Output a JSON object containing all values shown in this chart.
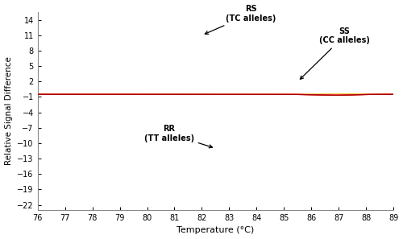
{
  "xlabel": "Temperature (°C)",
  "ylabel": "Relative Signal Difference",
  "xlim": [
    76,
    89
  ],
  "ylim": [
    -23,
    15.5
  ],
  "yticks": [
    14,
    11,
    8,
    5,
    2,
    -1,
    -4,
    -7,
    -10,
    -13,
    -16,
    -19,
    -22
  ],
  "xticks": [
    76,
    77,
    78,
    79,
    80,
    81,
    82,
    83,
    84,
    85,
    86,
    87,
    88,
    89
  ],
  "rs_label": "RS\n(TC alleles)",
  "ss_label": "SS\n(CC alleles)",
  "rr_label": "RR\n(TT alleles)",
  "baseline": -0.5,
  "ss_colors": [
    "#aaeaaa",
    "#88dd88",
    "#66cc66",
    "#44bb44",
    "#22aa22",
    "#119911"
  ],
  "rs_colors": [
    "#fffaaa",
    "#fff088",
    "#ffe866",
    "#ffd844",
    "#ffc822",
    "#ffb800",
    "#ffa800"
  ],
  "rr_colors": [
    "#ffdddd",
    "#ffbbbb",
    "#ff9999",
    "#ff7777",
    "#ff5555",
    "#ee3333",
    "#cc1111",
    "#aa0000"
  ]
}
